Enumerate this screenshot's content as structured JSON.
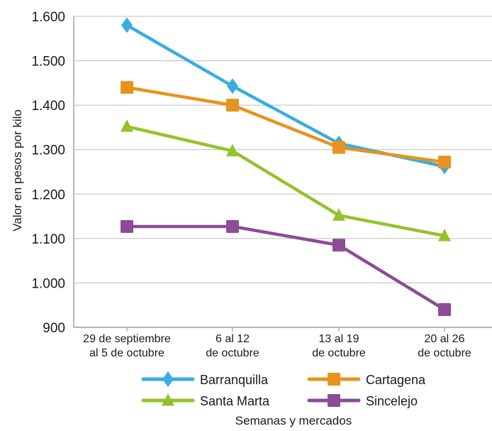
{
  "chart_data": {
    "type": "line",
    "title": "",
    "ylabel": "Valor en pesos por kilo",
    "xlabel": "Semanas y mercados",
    "ylim": [
      900,
      1600
    ],
    "y_ticks": [
      "900",
      "1.000",
      "1.100",
      "1.200",
      "1.300",
      "1.400",
      "1.500",
      "1.600"
    ],
    "y_tick_values": [
      900,
      1000,
      1100,
      1200,
      1300,
      1400,
      1500,
      1600
    ],
    "categories": [
      [
        "29 de septiembre",
        "al 5 de octubre"
      ],
      [
        "6 al 12",
        "de octubre"
      ],
      [
        "13 al 19",
        "de octubre"
      ],
      [
        "20 al 26",
        "de octubre"
      ]
    ],
    "grid": true,
    "legend_position": "bottom",
    "series": [
      {
        "name": "Barranquilla",
        "color": "#3aace1",
        "marker": "diamond",
        "values": [
          1580,
          1443,
          1314,
          1262
        ]
      },
      {
        "name": "Cartagena",
        "color": "#e7931e",
        "marker": "square",
        "values": [
          1440,
          1400,
          1305,
          1272
        ]
      },
      {
        "name": "Santa Marta",
        "color": "#95c22a",
        "marker": "triangle",
        "values": [
          1352,
          1297,
          1152,
          1106
        ]
      },
      {
        "name": "Sincelejo",
        "color": "#8e4b98",
        "marker": "square",
        "values": [
          1127,
          1127,
          1085,
          940
        ]
      }
    ]
  }
}
